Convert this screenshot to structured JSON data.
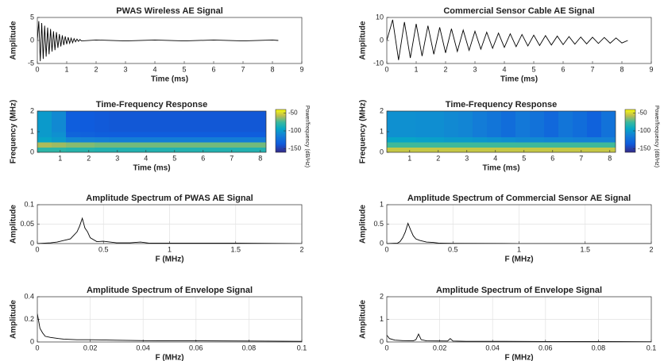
{
  "chart_data": [
    {
      "type": "line",
      "title": "PWAS Wireless AE Signal",
      "xlabel": "Time (ms)",
      "ylabel": "Amplitude",
      "color": "#000000",
      "grid": false,
      "x": [
        0,
        0.05,
        0.1,
        0.15,
        0.2,
        0.25,
        0.3,
        0.35,
        0.4,
        0.45,
        0.5,
        0.55,
        0.6,
        0.65,
        0.7,
        0.75,
        0.8,
        0.85,
        0.9,
        0.95,
        1,
        1.05,
        1.1,
        1.15,
        1.2,
        1.25,
        1.3,
        1.35,
        1.4,
        1.45,
        1.5,
        2,
        3,
        4,
        5,
        6,
        7,
        8,
        8.2
      ],
      "values": [
        0,
        4.2,
        -4.5,
        3.8,
        -4,
        3.2,
        -3.5,
        2.8,
        -3,
        2.5,
        -2.4,
        2,
        -2.1,
        1.8,
        -1.6,
        1.4,
        -1.3,
        1.1,
        -1,
        0.9,
        -0.8,
        0.7,
        -0.6,
        0.5,
        -0.5,
        0.4,
        -0.3,
        0.3,
        -0.2,
        0.2,
        -0.1,
        0.1,
        -0.1,
        0.1,
        -0.1,
        0.1,
        -0.1,
        0.1,
        0
      ],
      "xlim": [
        0,
        9
      ],
      "xticks": [
        0,
        1,
        2,
        3,
        4,
        5,
        6,
        7,
        8,
        9
      ],
      "ylim": [
        -5,
        5
      ],
      "yticks": [
        -5,
        0,
        5
      ]
    },
    {
      "type": "line",
      "title": "Commercial Sensor Cable AE Signal",
      "xlabel": "Time (ms)",
      "ylabel": "Amplitude",
      "color": "#000000",
      "grid": false,
      "x": [
        0,
        0.2,
        0.4,
        0.6,
        0.8,
        1,
        1.2,
        1.4,
        1.6,
        1.8,
        2,
        2.2,
        2.4,
        2.6,
        2.8,
        3,
        3.2,
        3.4,
        3.6,
        3.8,
        4,
        4.2,
        4.4,
        4.6,
        4.8,
        5,
        5.2,
        5.4,
        5.6,
        5.8,
        6,
        6.2,
        6.4,
        6.6,
        6.8,
        7,
        7.2,
        7.4,
        7.6,
        7.8,
        8,
        8.2
      ],
      "values": [
        0,
        9,
        -8.5,
        8,
        -7.6,
        7.2,
        -6.8,
        6.4,
        -6,
        5.7,
        -5.4,
        5.1,
        -4.8,
        4.5,
        -4.3,
        4,
        -3.8,
        3.6,
        -3.4,
        3.2,
        -3,
        2.9,
        -2.7,
        2.6,
        -2.4,
        2.3,
        -2.2,
        2.1,
        -2,
        1.9,
        -1.8,
        1.7,
        -1.6,
        1.5,
        -1.5,
        1.4,
        -1.3,
        1.3,
        -1.2,
        1.1,
        -1.1,
        0
      ],
      "xlim": [
        0,
        9
      ],
      "xticks": [
        0,
        1,
        2,
        3,
        4,
        5,
        6,
        7,
        8,
        9
      ],
      "ylim": [
        -10,
        10
      ],
      "yticks": [
        -10,
        0,
        10
      ]
    },
    {
      "type": "heatmap",
      "title": "Time-Frequency Response",
      "xlabel": "Time (ms)",
      "ylabel": "Frequency (MHz)",
      "colorbar_label": "Power/frequency (dB/Hz)",
      "x": [
        0.45,
        0.95,
        1.45,
        1.95,
        2.45,
        2.95,
        3.45,
        3.95,
        4.45,
        4.95,
        5.45,
        5.95,
        6.45,
        6.95,
        7.45,
        7.95
      ],
      "y": [
        0.125,
        0.375,
        0.625,
        0.875,
        1.125,
        1.375,
        1.625,
        1.875
      ],
      "z": [
        [
          -80,
          -80,
          -82,
          -82,
          -84,
          -84,
          -84,
          -84,
          -84,
          -84,
          -84,
          -84,
          -84,
          -84,
          -84,
          -84
        ],
        [
          -60,
          -62,
          -65,
          -66,
          -68,
          -68,
          -68,
          -68,
          -68,
          -68,
          -68,
          -68,
          -68,
          -68,
          -68,
          -68
        ],
        [
          -95,
          -100,
          -110,
          -112,
          -114,
          -115,
          -115,
          -115,
          -115,
          -115,
          -115,
          -115,
          -115,
          -115,
          -115,
          -115
        ],
        [
          -100,
          -105,
          -130,
          -132,
          -134,
          -135,
          -135,
          -135,
          -135,
          -135,
          -135,
          -135,
          -135,
          -135,
          -135,
          -135
        ],
        [
          -100,
          -108,
          -135,
          -136,
          -137,
          -138,
          -138,
          -138,
          -138,
          -138,
          -138,
          -138,
          -138,
          -138,
          -138,
          -138
        ],
        [
          -100,
          -108,
          -135,
          -136,
          -137,
          -138,
          -138,
          -138,
          -138,
          -138,
          -138,
          -138,
          -138,
          -138,
          -138,
          -138
        ],
        [
          -100,
          -108,
          -135,
          -136,
          -137,
          -138,
          -138,
          -138,
          -138,
          -138,
          -138,
          -138,
          -138,
          -138,
          -138,
          -138
        ],
        [
          -100,
          -108,
          -135,
          -136,
          -137,
          -138,
          -138,
          -138,
          -138,
          -138,
          -138,
          -138,
          -138,
          -138,
          -138,
          -138
        ]
      ],
      "xlim": [
        0.2,
        8.2
      ],
      "xticks": [
        1,
        2,
        3,
        4,
        5,
        6,
        7,
        8
      ],
      "ylim": [
        0,
        2
      ],
      "yticks": [
        0,
        1,
        2
      ],
      "clim": [
        -160,
        -40
      ],
      "cticks": [
        -50,
        -100,
        -150
      ]
    },
    {
      "type": "heatmap",
      "title": "Time-Frequency Response",
      "xlabel": "Time (ms)",
      "ylabel": "Frequency (MHz)",
      "colorbar_label": "Power/frequency (dB/Hz)",
      "x": [
        0.45,
        0.95,
        1.45,
        1.95,
        2.45,
        2.95,
        3.45,
        3.95,
        4.45,
        4.95,
        5.45,
        5.95,
        6.45,
        6.95,
        7.45,
        7.95
      ],
      "y": [
        0.125,
        0.375,
        0.625,
        0.875,
        1.125,
        1.375,
        1.625,
        1.875
      ],
      "z": [
        [
          -55,
          -55,
          -55,
          -55,
          -55,
          -55,
          -55,
          -55,
          -55,
          -55,
          -55,
          -55,
          -55,
          -55,
          -55,
          -55
        ],
        [
          -75,
          -75,
          -75,
          -75,
          -75,
          -75,
          -75,
          -75,
          -75,
          -75,
          -75,
          -75,
          -75,
          -75,
          -75,
          -75
        ],
        [
          -95,
          -95,
          -97,
          -98,
          -100,
          -100,
          -102,
          -104,
          -106,
          -108,
          -108,
          -110,
          -110,
          -112,
          -112,
          -112
        ],
        [
          -105,
          -105,
          -106,
          -106,
          -108,
          -110,
          -115,
          -120,
          -125,
          -118,
          -122,
          -128,
          -120,
          -125,
          -132,
          -122
        ],
        [
          -105,
          -105,
          -106,
          -106,
          -108,
          -110,
          -115,
          -120,
          -125,
          -118,
          -122,
          -128,
          -120,
          -125,
          -132,
          -122
        ],
        [
          -105,
          -105,
          -106,
          -106,
          -108,
          -110,
          -115,
          -120,
          -125,
          -118,
          -122,
          -128,
          -120,
          -125,
          -132,
          -122
        ],
        [
          -105,
          -105,
          -106,
          -106,
          -108,
          -110,
          -115,
          -120,
          -125,
          -118,
          -122,
          -128,
          -120,
          -125,
          -132,
          -122
        ],
        [
          -105,
          -105,
          -106,
          -106,
          -108,
          -110,
          -115,
          -120,
          -125,
          -118,
          -122,
          -128,
          -120,
          -125,
          -132,
          -122
        ]
      ],
      "xlim": [
        0.2,
        8.2
      ],
      "xticks": [
        1,
        2,
        3,
        4,
        5,
        6,
        7,
        8
      ],
      "ylim": [
        0,
        2
      ],
      "yticks": [
        0,
        1,
        2
      ],
      "clim": [
        -160,
        -40
      ],
      "cticks": [
        -50,
        -100,
        -150
      ]
    },
    {
      "type": "line",
      "title": "Amplitude Spectrum of PWAS AE Signal",
      "xlabel": "F (MHz)",
      "ylabel": "Amplitude",
      "color": "#000000",
      "grid": true,
      "x": [
        0,
        0.1,
        0.15,
        0.2,
        0.25,
        0.3,
        0.32,
        0.34,
        0.36,
        0.38,
        0.4,
        0.45,
        0.5,
        0.6,
        0.7,
        0.78,
        0.85,
        1,
        1.5,
        2
      ],
      "values": [
        0,
        0.002,
        0.004,
        0.008,
        0.012,
        0.03,
        0.045,
        0.065,
        0.04,
        0.03,
        0.015,
        0.005,
        0.006,
        0.002,
        0.002,
        0.004,
        0.001,
        0.001,
        0.001,
        0
      ],
      "xlim": [
        0,
        2
      ],
      "xticks": [
        0,
        0.5,
        1,
        1.5,
        2
      ],
      "ylim": [
        0,
        0.1
      ],
      "yticks": [
        0,
        0.05,
        0.1
      ]
    },
    {
      "type": "line",
      "title": "Amplitude Spectrum of Commercial Sensor AE Signal",
      "xlabel": "F (MHz)",
      "ylabel": "Amplitude",
      "color": "#000000",
      "grid": true,
      "x": [
        0,
        0.08,
        0.1,
        0.12,
        0.14,
        0.16,
        0.18,
        0.2,
        0.22,
        0.25,
        0.3,
        0.35,
        0.4,
        0.5,
        1,
        1.5,
        2
      ],
      "values": [
        0,
        0.01,
        0.05,
        0.15,
        0.3,
        0.52,
        0.35,
        0.2,
        0.12,
        0.08,
        0.04,
        0.03,
        0.01,
        0.005,
        0.002,
        0.001,
        0
      ],
      "xlim": [
        0,
        2
      ],
      "xticks": [
        0,
        0.5,
        1,
        1.5,
        2
      ],
      "ylim": [
        0,
        1
      ],
      "yticks": [
        0,
        0.5,
        1
      ]
    },
    {
      "type": "line",
      "title": "Amplitude Spectrum of Envelope Signal",
      "xlabel": "F (MHz)",
      "ylabel": "Amplitude",
      "color": "#000000",
      "grid": true,
      "x": [
        0,
        0.001,
        0.002,
        0.003,
        0.005,
        0.008,
        0.01,
        0.015,
        0.02,
        0.03,
        0.04,
        0.05,
        0.06,
        0.08,
        0.1
      ],
      "values": [
        0.25,
        0.12,
        0.08,
        0.05,
        0.04,
        0.03,
        0.025,
        0.02,
        0.02,
        0.015,
        0.012,
        0.01,
        0.01,
        0.008,
        0.006
      ],
      "xlim": [
        0,
        0.1
      ],
      "xticks": [
        0,
        0.02,
        0.04,
        0.06,
        0.08,
        0.1
      ],
      "ylim": [
        0,
        0.4
      ],
      "yticks": [
        0,
        0.2,
        0.4
      ]
    },
    {
      "type": "line",
      "title": "Amplitude Spectrum of Envelope Signal",
      "xlabel": "F (MHz)",
      "ylabel": "Amplitude",
      "color": "#000000",
      "grid": true,
      "x": [
        0,
        0.001,
        0.003,
        0.006,
        0.01,
        0.011,
        0.012,
        0.013,
        0.015,
        0.023,
        0.024,
        0.025,
        0.03,
        0.04,
        0.06,
        0.08,
        0.1
      ],
      "values": [
        0.3,
        0.15,
        0.08,
        0.06,
        0.05,
        0.1,
        0.35,
        0.1,
        0.05,
        0.04,
        0.15,
        0.04,
        0.03,
        0.03,
        0.02,
        0.02,
        0.01
      ],
      "xlim": [
        0,
        0.1
      ],
      "xticks": [
        0,
        0.02,
        0.04,
        0.06,
        0.08,
        0.1
      ],
      "ylim": [
        0,
        2
      ],
      "yticks": [
        0,
        1,
        2
      ]
    }
  ]
}
